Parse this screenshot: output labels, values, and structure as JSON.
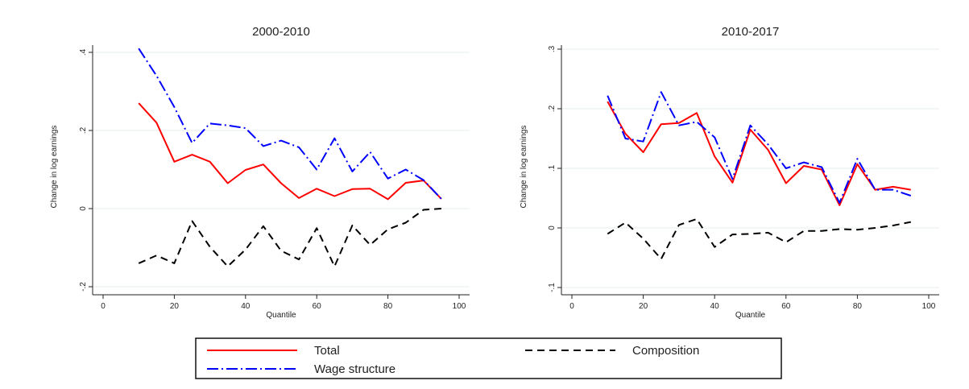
{
  "chart_data": [
    {
      "type": "line",
      "title": "2000-2010",
      "xlabel": "Quantile",
      "ylabel": "Change in log earnings",
      "xlim": [
        0,
        100
      ],
      "ylim": [
        -0.2,
        0.4
      ],
      "xticks": [
        0,
        20,
        40,
        60,
        80,
        100
      ],
      "yticks": [
        -0.2,
        0,
        0.2,
        0.4
      ],
      "ytick_labels": [
        "-.2",
        "0",
        ".2",
        ".4"
      ],
      "grid": true,
      "x": [
        10,
        15,
        20,
        25,
        30,
        35,
        40,
        45,
        50,
        55,
        60,
        65,
        70,
        75,
        80,
        85,
        90,
        95
      ],
      "series": [
        {
          "name": "Total",
          "color": "#ff0000",
          "style": "solid",
          "values": [
            0.27,
            0.22,
            0.12,
            0.138,
            0.12,
            0.065,
            0.099,
            0.113,
            0.065,
            0.027,
            0.051,
            0.032,
            0.05,
            0.051,
            0.024,
            0.066,
            0.072,
            0.025
          ]
        },
        {
          "name": "Wage structure",
          "color": "#0000ff",
          "style": "dashdot",
          "values": [
            0.41,
            0.34,
            0.26,
            0.168,
            0.218,
            0.213,
            0.206,
            0.16,
            0.174,
            0.157,
            0.1,
            0.18,
            0.095,
            0.145,
            0.077,
            0.1,
            0.073,
            0.025
          ]
        },
        {
          "name": "Composition",
          "color": "#000000",
          "style": "dashed",
          "values": [
            -0.14,
            -0.12,
            -0.14,
            -0.032,
            -0.098,
            -0.148,
            -0.105,
            -0.045,
            -0.108,
            -0.13,
            -0.05,
            -0.148,
            -0.043,
            -0.093,
            -0.053,
            -0.036,
            -0.003,
            0.0
          ]
        }
      ]
    },
    {
      "type": "line",
      "title": "2010-2017",
      "xlabel": "Quantile",
      "ylabel": "Change in log earnings",
      "xlim": [
        0,
        100
      ],
      "ylim": [
        -0.1,
        0.3
      ],
      "xticks": [
        0,
        20,
        40,
        60,
        80,
        100
      ],
      "yticks": [
        -0.1,
        0,
        0.1,
        0.2,
        0.3
      ],
      "ytick_labels": [
        "-.1",
        "0",
        ".1",
        ".2",
        ".3"
      ],
      "grid": true,
      "x": [
        10,
        15,
        20,
        25,
        30,
        35,
        40,
        45,
        50,
        55,
        60,
        65,
        70,
        75,
        80,
        85,
        90,
        95
      ],
      "series": [
        {
          "name": "Total",
          "color": "#ff0000",
          "style": "solid",
          "values": [
            0.212,
            0.158,
            0.127,
            0.174,
            0.176,
            0.193,
            0.12,
            0.076,
            0.165,
            0.131,
            0.075,
            0.104,
            0.098,
            0.038,
            0.107,
            0.064,
            0.069,
            0.064
          ]
        },
        {
          "name": "Wage structure",
          "color": "#0000ff",
          "style": "dashdot",
          "values": [
            0.222,
            0.15,
            0.145,
            0.228,
            0.172,
            0.178,
            0.152,
            0.082,
            0.172,
            0.14,
            0.1,
            0.11,
            0.102,
            0.042,
            0.116,
            0.064,
            0.064,
            0.054
          ]
        },
        {
          "name": "Composition",
          "color": "#000000",
          "style": "dashed",
          "values": [
            -0.01,
            0.009,
            -0.018,
            -0.052,
            0.005,
            0.015,
            -0.032,
            -0.011,
            -0.01,
            -0.008,
            -0.024,
            -0.005,
            -0.005,
            -0.002,
            -0.003,
            0.0,
            0.004,
            0.01
          ]
        }
      ]
    }
  ],
  "legend": {
    "placement": "bottom",
    "items": [
      {
        "label": "Total",
        "color": "#ff0000",
        "style": "solid"
      },
      {
        "label": "Composition",
        "color": "#000000",
        "style": "dashed"
      },
      {
        "label": "Wage structure",
        "color": "#0000ff",
        "style": "dashdot"
      }
    ]
  }
}
